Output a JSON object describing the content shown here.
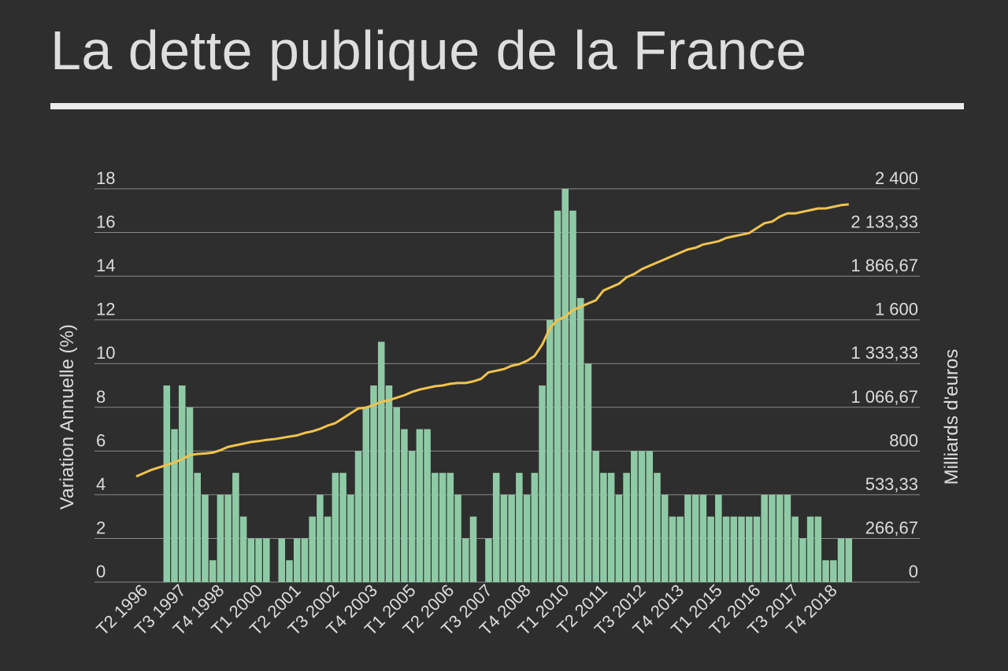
{
  "title": "La dette publique de la France",
  "chart_data": {
    "type": "bar+line",
    "ylabel": "Variation Annuelle (%)",
    "y2label": "Milliards d'euros",
    "ylim": [
      0,
      18
    ],
    "y2lim": [
      0,
      2400
    ],
    "yticks": [
      "0",
      "2",
      "4",
      "6",
      "8",
      "10",
      "12",
      "14",
      "16",
      "18"
    ],
    "y2ticks": [
      "0",
      "266,67",
      "533,33",
      "800",
      "1 066,67",
      "1 333,33",
      "1 600",
      "1 866,67",
      "2 133,33",
      "2 400"
    ],
    "xtick_labels": [
      "T2 1996",
      "T3 1997",
      "T4 1998",
      "T1 2000",
      "T2 2001",
      "T3 2002",
      "T4 2003",
      "T1 2005",
      "T2 2006",
      "T3 2007",
      "T4 2008",
      "T1 2010",
      "T2 2011",
      "T3 2012",
      "T4 2013",
      "T1 2015",
      "T2 2016",
      "T3 2017",
      "T4 2018"
    ],
    "grid": true,
    "bar_color": "#8fcaa6",
    "line_color": "#f0c34e",
    "bars": [
      null,
      null,
      null,
      null,
      9,
      7,
      9,
      8,
      5,
      4,
      1,
      4,
      4,
      5,
      3,
      2,
      2,
      2,
      0,
      2,
      1,
      2,
      2,
      3,
      4,
      3,
      5,
      5,
      4,
      6,
      8,
      9,
      11,
      9,
      8,
      7,
      6,
      7,
      7,
      5,
      5,
      5,
      4,
      2,
      3,
      0,
      2,
      5,
      4,
      4,
      5,
      4,
      5,
      9,
      12,
      17,
      18,
      17,
      13,
      10,
      6,
      5,
      5,
      4,
      5,
      6,
      6,
      6,
      5,
      4,
      3,
      3,
      4,
      4,
      4,
      3,
      4,
      3,
      3,
      3,
      3,
      3,
      4,
      4,
      4,
      4,
      3,
      2,
      3,
      3,
      1,
      1,
      2,
      2
    ],
    "line": [
      645,
      665,
      685,
      700,
      715,
      730,
      750,
      775,
      782,
      785,
      790,
      805,
      825,
      835,
      845,
      855,
      860,
      868,
      872,
      880,
      888,
      895,
      910,
      920,
      935,
      955,
      970,
      1000,
      1030,
      1060,
      1065,
      1080,
      1100,
      1110,
      1125,
      1140,
      1160,
      1175,
      1185,
      1195,
      1200,
      1210,
      1215,
      1215,
      1225,
      1240,
      1280,
      1290,
      1300,
      1320,
      1330,
      1350,
      1380,
      1450,
      1550,
      1600,
      1620,
      1660,
      1680,
      1700,
      1720,
      1780,
      1800,
      1820,
      1860,
      1880,
      1910,
      1930,
      1950,
      1970,
      1990,
      2010,
      2030,
      2040,
      2060,
      2070,
      2080,
      2100,
      2110,
      2120,
      2130,
      2160,
      2190,
      2200,
      2230,
      2250,
      2250,
      2260,
      2270,
      2280,
      2280,
      2290,
      2300,
      2305
    ]
  }
}
